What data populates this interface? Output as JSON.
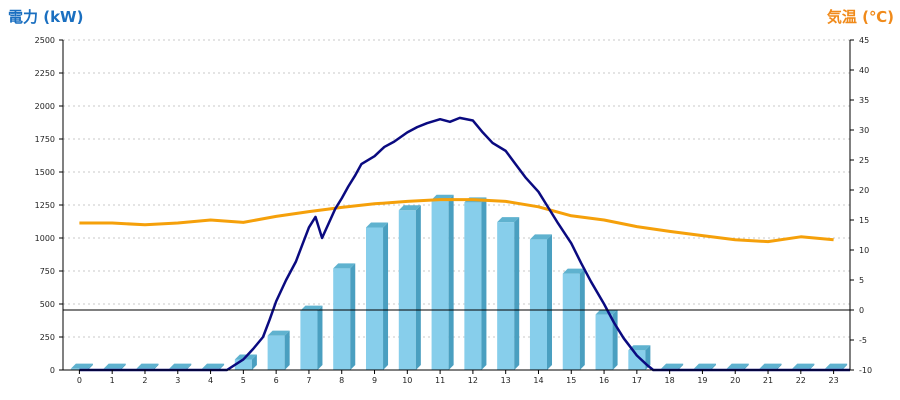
{
  "chart_data": {
    "type": "bar",
    "left_axis_label": "電力 (kW)",
    "right_axis_label": "気温 (℃)",
    "left_ylim": [
      0,
      2500
    ],
    "right_ylim": [
      -10,
      45
    ],
    "left_ticks": [
      "0",
      "250",
      "500",
      "750",
      "1000",
      "1250",
      "1500",
      "1750",
      "2000",
      "2250",
      "2500"
    ],
    "right_ticks": [
      "-10",
      "-5",
      "0",
      "5",
      "10",
      "15",
      "20",
      "25",
      "30",
      "35",
      "40",
      "45"
    ],
    "categories": [
      "0",
      "1",
      "2",
      "3",
      "4",
      "5",
      "6",
      "7",
      "8",
      "9",
      "10",
      "11",
      "12",
      "13",
      "14",
      "15",
      "16",
      "17",
      "18",
      "19",
      "20",
      "21",
      "22",
      "23"
    ],
    "bars": {
      "values": [
        10,
        10,
        10,
        10,
        10,
        80,
        260,
        450,
        770,
        1080,
        1210,
        1290,
        1270,
        1120,
        990,
        730,
        420,
        150,
        10,
        10,
        10,
        10,
        10,
        10
      ],
      "color": "#87ceeb"
    },
    "demand_line": {
      "color": "#0a0a80",
      "x": [
        0,
        4.5,
        5,
        5.3,
        5.6,
        5.8,
        6,
        6.3,
        6.6,
        6.8,
        7,
        7.2,
        7.4,
        7.6,
        7.8,
        8,
        8.2,
        8.4,
        8.6,
        9,
        9.3,
        9.6,
        10,
        10.3,
        10.6,
        11,
        11.3,
        11.6,
        12,
        12.3,
        12.6,
        13,
        13.3,
        13.6,
        14,
        14.3,
        14.6,
        15,
        15.3,
        15.6,
        16,
        16.3,
        16.6,
        17,
        17.3,
        17.5,
        23.5
      ],
      "y": [
        0,
        0,
        80,
        160,
        250,
        380,
        520,
        680,
        820,
        950,
        1080,
        1160,
        1000,
        1110,
        1220,
        1300,
        1390,
        1470,
        1560,
        1620,
        1690,
        1730,
        1800,
        1840,
        1870,
        1900,
        1880,
        1910,
        1890,
        1800,
        1720,
        1660,
        1560,
        1460,
        1350,
        1230,
        1110,
        960,
        810,
        670,
        500,
        360,
        240,
        110,
        40,
        0,
        0
      ]
    },
    "temperature_line": {
      "color": "#f5a00a",
      "x": [
        0,
        1,
        2,
        3,
        4,
        5,
        6,
        7,
        8,
        9,
        10,
        11,
        12,
        13,
        14,
        15,
        16,
        17,
        18,
        19,
        20,
        21,
        22,
        23
      ],
      "y": [
        14.5,
        14.5,
        14.2,
        14.5,
        15,
        14.6,
        15.6,
        16.4,
        17.1,
        17.7,
        18.1,
        18.4,
        18.4,
        18.1,
        17.2,
        15.7,
        15,
        13.9,
        13.1,
        12.4,
        11.7,
        11.4,
        12.2,
        11.7
      ]
    },
    "reference_line_value": 0,
    "grid": true
  }
}
